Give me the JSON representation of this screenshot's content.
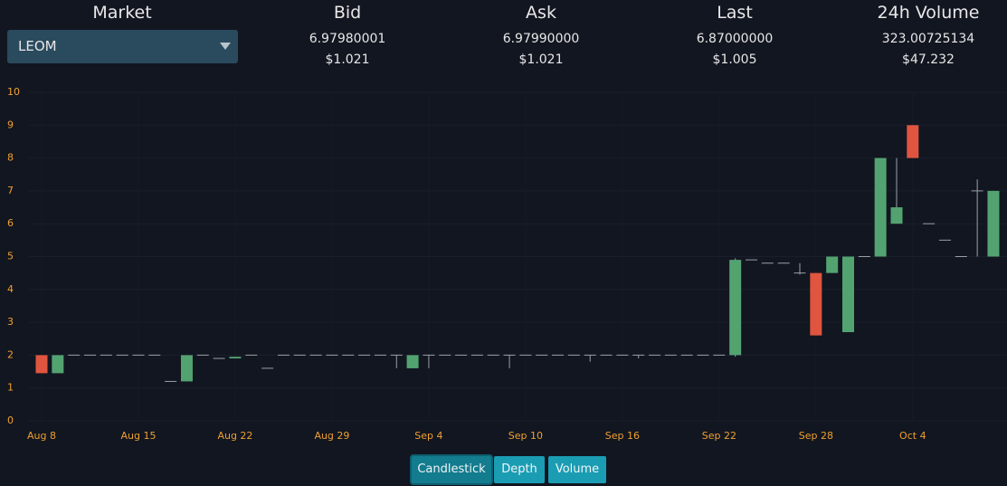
{
  "header": {
    "columns": [
      {
        "label": "Market"
      },
      {
        "label": "Bid",
        "value": "6.97980001",
        "usd": "$1.021"
      },
      {
        "label": "Ask",
        "value": "6.97990000",
        "usd": "$1.021"
      },
      {
        "label": "Last",
        "value": "6.87000000",
        "usd": "$1.005"
      },
      {
        "label": "24h Volume",
        "value": "323.00725134",
        "usd": "$47.232"
      }
    ],
    "market_select": "LEOM"
  },
  "chart_data": {
    "type": "candlestick",
    "categories": [
      "Aug 8",
      null,
      null,
      null,
      null,
      null,
      "Aug 15",
      null,
      null,
      null,
      null,
      null,
      "Aug 22",
      null,
      null,
      null,
      null,
      null,
      "Aug 29",
      null,
      null,
      null,
      null,
      null,
      "Sep 4",
      null,
      null,
      null,
      null,
      null,
      "Sep 10",
      null,
      null,
      null,
      null,
      null,
      "Sep 16",
      null,
      null,
      null,
      null,
      null,
      "Sep 22",
      null,
      null,
      null,
      null,
      null,
      "Sep 28",
      null,
      null,
      null,
      null,
      null,
      "Oct 4",
      null,
      null,
      null,
      null,
      null
    ],
    "open": [
      2,
      1.45,
      2,
      2,
      2,
      2,
      2,
      2,
      1.2,
      1.2,
      2,
      1.9,
      1.9,
      2,
      1.6,
      2,
      2,
      2,
      2,
      2,
      2,
      2,
      2,
      1.6,
      2,
      2,
      2,
      2,
      2,
      2,
      2,
      2,
      2,
      2,
      2,
      2,
      2,
      2,
      2,
      2,
      2,
      2,
      2,
      2,
      4.9,
      4.8,
      4.8,
      4.5,
      4.5,
      4.5,
      2.7,
      5,
      5,
      6,
      9,
      6,
      5.5,
      5,
      7,
      5
    ],
    "high": [
      2,
      2,
      2,
      2,
      2,
      2,
      2,
      2,
      1.2,
      2,
      2,
      1.9,
      1.95,
      2,
      1.6,
      2,
      2,
      2,
      2,
      2,
      2,
      2,
      2,
      2,
      2,
      2,
      2,
      2,
      2,
      2,
      2,
      2,
      2,
      2,
      2,
      2,
      2,
      2,
      2,
      2,
      2,
      2,
      2,
      4.95,
      4.9,
      4.8,
      4.8,
      4.8,
      4.5,
      5,
      5,
      5,
      8,
      8,
      9,
      6,
      5.5,
      5,
      7.35,
      7
    ],
    "low": [
      1.45,
      1.45,
      2,
      2,
      2,
      2,
      2,
      2,
      1.2,
      1.2,
      2,
      1.9,
      1.9,
      2,
      1.6,
      2,
      2,
      2,
      2,
      2,
      2,
      2,
      1.6,
      1.6,
      1.6,
      2,
      2,
      2,
      2,
      1.6,
      2,
      2,
      2,
      2,
      1.8,
      2,
      2,
      1.9,
      2,
      2,
      2,
      2,
      2,
      1.95,
      4.9,
      4.8,
      4.8,
      4.45,
      2.6,
      4.5,
      2.7,
      5,
      5,
      6,
      8,
      6,
      5.5,
      5,
      5,
      5
    ],
    "close": [
      1.45,
      2,
      2,
      2,
      2,
      2,
      2,
      2,
      1.2,
      2,
      2,
      1.9,
      1.95,
      2,
      1.6,
      2,
      2,
      2,
      2,
      2,
      2,
      2,
      2,
      2,
      2,
      2,
      2,
      2,
      2,
      2,
      2,
      2,
      2,
      2,
      2,
      2,
      2,
      2,
      2,
      2,
      2,
      2,
      2,
      4.9,
      4.9,
      4.8,
      4.8,
      4.5,
      2.6,
      5,
      5,
      5,
      8,
      6.5,
      8,
      6,
      5.5,
      5,
      7,
      7
    ],
    "up_color": "#53a371",
    "down_color": "#e0553f",
    "ylim": [
      0,
      10
    ],
    "yticks": [
      0,
      1,
      2,
      3,
      4,
      5,
      6,
      7,
      8,
      9,
      10
    ],
    "grid": true
  },
  "buttons": [
    "Candlestick",
    "Depth",
    "Volume"
  ]
}
